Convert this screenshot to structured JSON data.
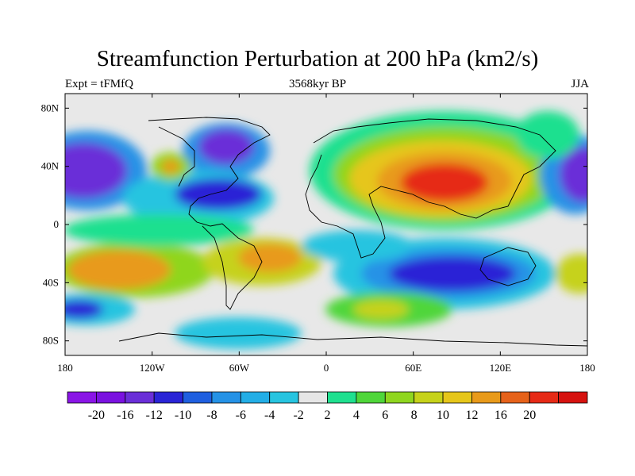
{
  "title": "Streamfunction Perturbation at 200 hPa (km2/s)",
  "subtitle_left": "Expt = tFMfQ",
  "subtitle_center": "3568kyr BP",
  "subtitle_right": "JJA",
  "map": {
    "projection": "cylindrical-equidistant",
    "lon_range": [
      -180,
      180
    ],
    "lat_range": [
      -90,
      90
    ],
    "lat_ticks": [
      {
        "value": 80,
        "label": "80N"
      },
      {
        "value": 40,
        "label": "40N"
      },
      {
        "value": 0,
        "label": "0"
      },
      {
        "value": -40,
        "label": "40S"
      },
      {
        "value": -80,
        "label": "80S"
      }
    ],
    "lon_ticks": [
      {
        "value": -180,
        "label": "180"
      },
      {
        "value": -120,
        "label": "120W"
      },
      {
        "value": -60,
        "label": "60W"
      },
      {
        "value": 0,
        "label": "0"
      },
      {
        "value": 60,
        "label": "60E"
      },
      {
        "value": 120,
        "label": "120E"
      },
      {
        "value": 180,
        "label": "180"
      }
    ],
    "land_mask_color": "#e8e8e8"
  },
  "colorbar": {
    "colors": [
      "#8a15e6",
      "#7a12e0",
      "#6a2fd8",
      "#2a24d6",
      "#1f5fe0",
      "#2592e6",
      "#23aee6",
      "#27c4e0",
      "#e6e6e6",
      "#1fe08f",
      "#4fd63a",
      "#8fd61f",
      "#c6d21a",
      "#e6c61a",
      "#e89a1a",
      "#e6621a",
      "#e62a16",
      "#d6120f"
    ],
    "labels": [
      "-20",
      "-16",
      "-12",
      "-10",
      "-8",
      "-6",
      "-4",
      "-2",
      "2",
      "4",
      "6",
      "8",
      "10",
      "12",
      "16",
      "20"
    ]
  }
}
